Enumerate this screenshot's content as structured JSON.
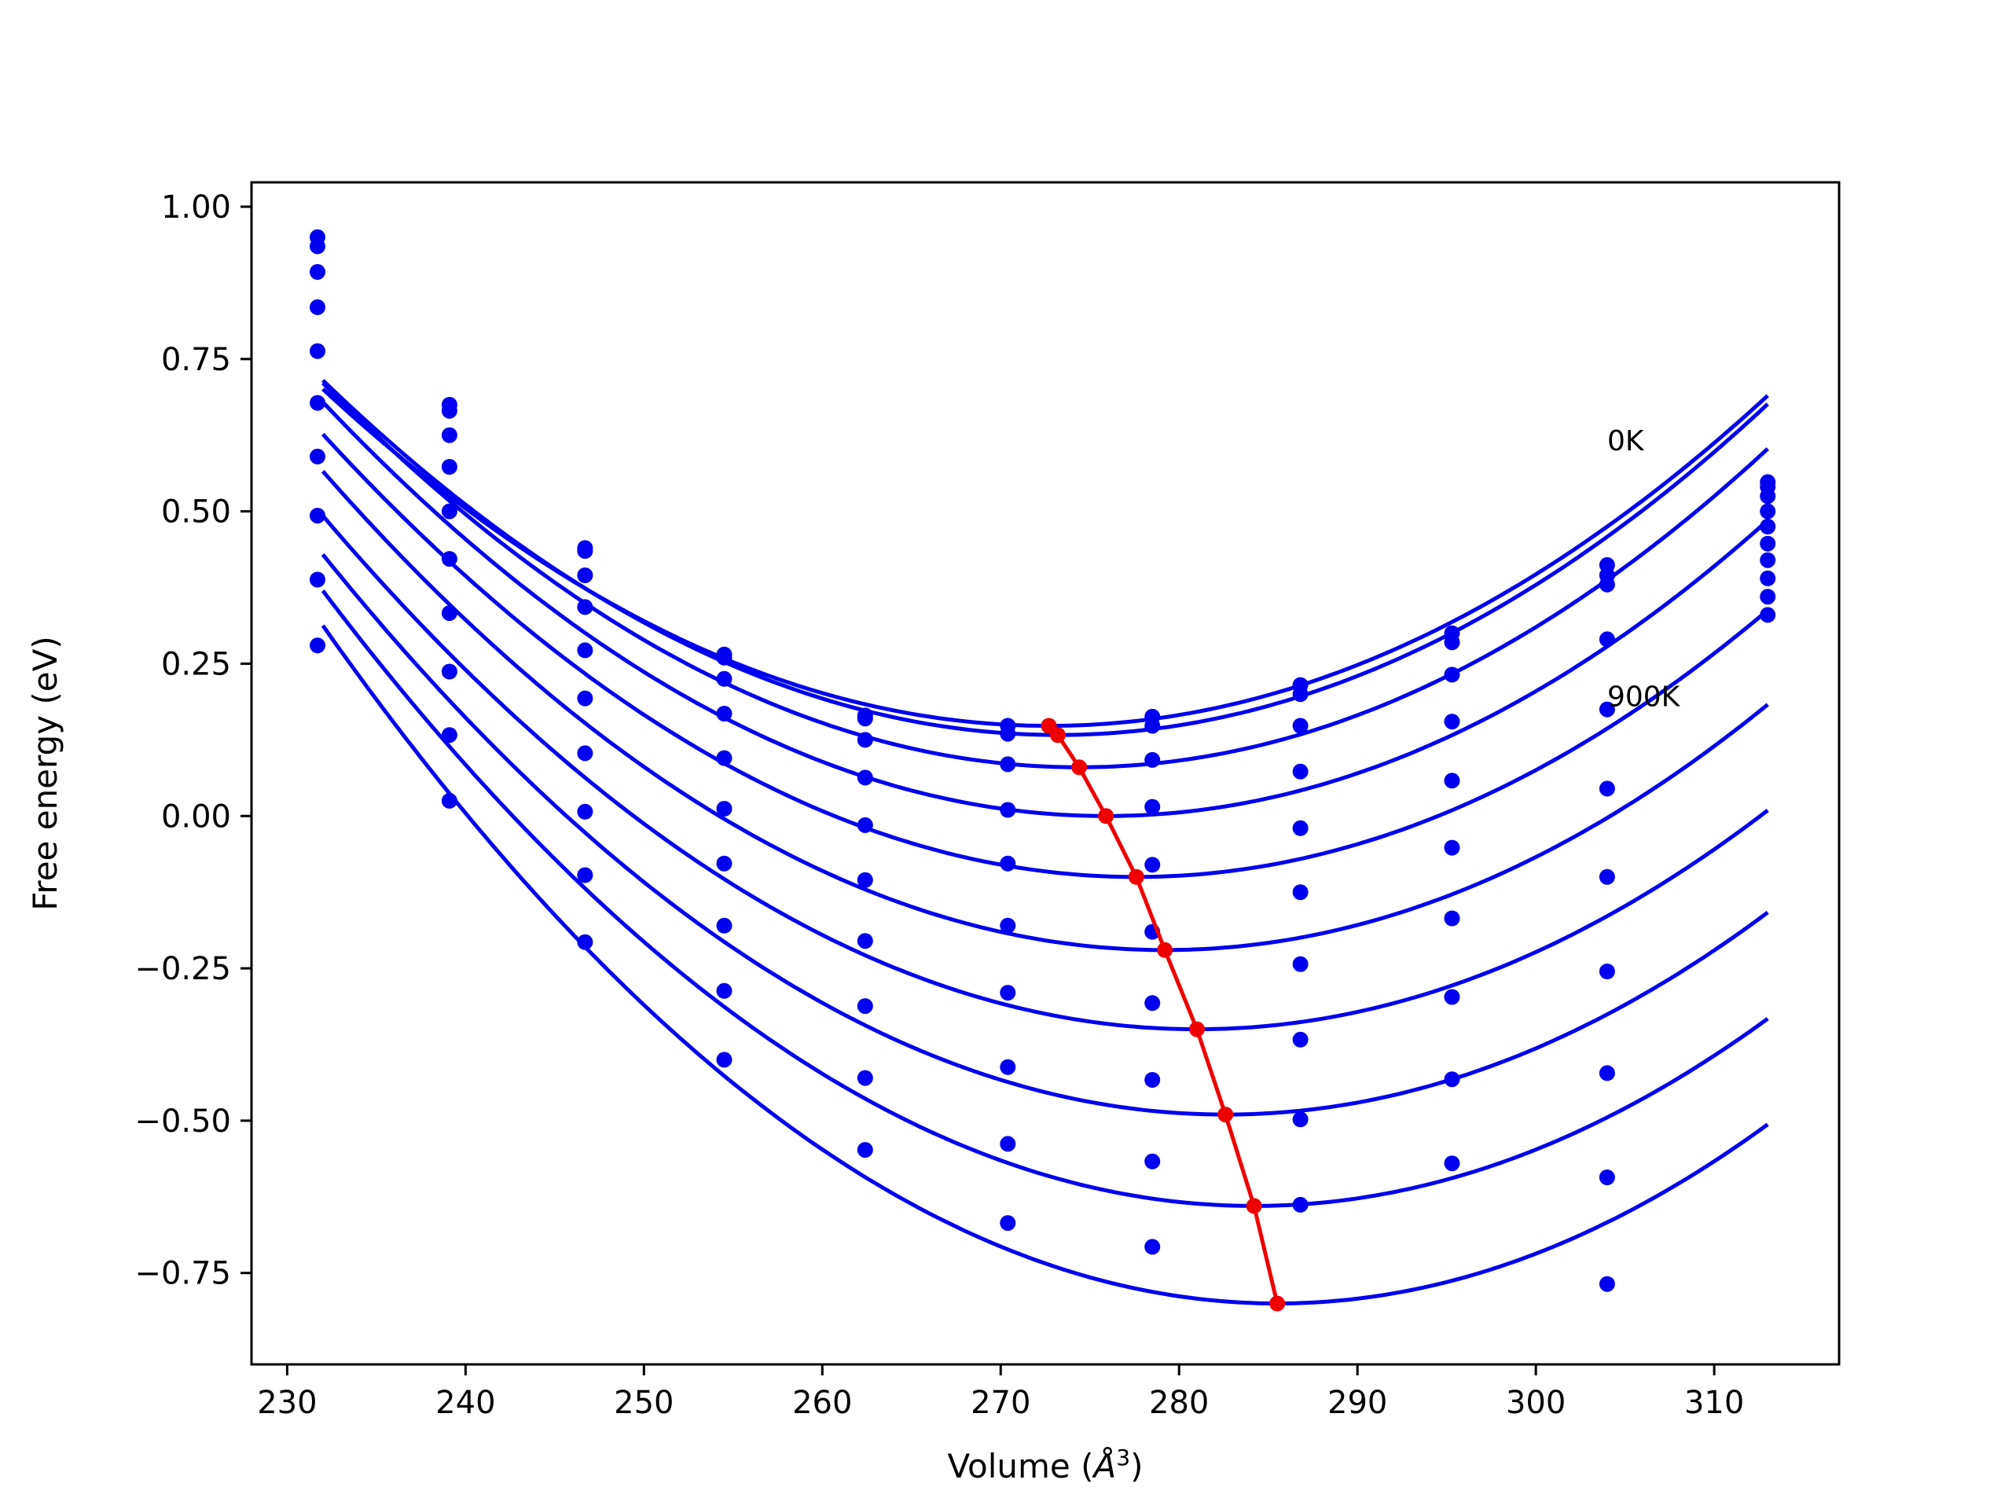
{
  "chart_data": {
    "type": "line",
    "title": "",
    "xlabel": "Volume (Å³)",
    "xlabel_main": "Volume (",
    "xlabel_unit": "Å",
    "xlabel_sup": "3",
    "xlabel_end": ")",
    "ylabel": "Free energy (eV)",
    "xlim": [
      228,
      317
    ],
    "ylim": [
      -0.9,
      1.04
    ],
    "xticks": [
      230,
      240,
      250,
      260,
      270,
      280,
      290,
      300,
      310
    ],
    "xtick_labels": [
      "230",
      "240",
      "250",
      "260",
      "270",
      "280",
      "290",
      "300",
      "310"
    ],
    "yticks": [
      1.0,
      0.75,
      0.5,
      0.25,
      0.0,
      -0.25,
      -0.5,
      -0.75
    ],
    "ytick_labels": [
      "1.00",
      "0.75",
      "0.50",
      "0.25",
      "0.00",
      "−0.25",
      "−0.50",
      "−0.75"
    ],
    "grid": false,
    "annotations": [
      {
        "text": "0K",
        "x": 304,
        "y": 0.6
      },
      {
        "text": "900K",
        "x": 304,
        "y": 0.18
      }
    ],
    "colors": {
      "fit": "#0000ee",
      "points": "#0000ee",
      "minimum_path": "#ee0000",
      "frame": "#000000"
    },
    "volumes": [
      231.7,
      239.1,
      246.7,
      254.5,
      262.4,
      270.4,
      278.5,
      286.8,
      295.3,
      304.0,
      313.0
    ],
    "data_points": [
      [
        0.95,
        0.675,
        0.44,
        0.265,
        0.165,
        0.148,
        0.163,
        0.215,
        0.3,
        0.412,
        0.548
      ],
      [
        0.935,
        0.665,
        0.435,
        0.26,
        0.16,
        0.135,
        0.148,
        0.2,
        0.285,
        0.395,
        0.54
      ],
      [
        0.893,
        0.625,
        0.395,
        0.225,
        0.125,
        0.085,
        0.092,
        0.148,
        0.232,
        0.38,
        0.525
      ],
      [
        0.835,
        0.573,
        0.343,
        0.168,
        0.063,
        0.01,
        0.015,
        0.073,
        0.155,
        0.29,
        0.5
      ],
      [
        0.763,
        0.5,
        0.272,
        0.095,
        -0.015,
        -0.078,
        -0.08,
        -0.02,
        0.058,
        0.175,
        0.475
      ],
      [
        0.678,
        0.422,
        0.193,
        0.012,
        -0.105,
        -0.18,
        -0.19,
        -0.125,
        -0.052,
        0.045,
        0.447
      ],
      [
        0.59,
        0.333,
        0.103,
        -0.078,
        -0.205,
        -0.29,
        -0.307,
        -0.243,
        -0.168,
        -0.1,
        0.42
      ],
      [
        0.493,
        0.237,
        0.007,
        -0.18,
        -0.312,
        -0.412,
        -0.433,
        -0.367,
        -0.297,
        -0.255,
        0.39
      ],
      [
        0.388,
        0.133,
        -0.097,
        -0.287,
        -0.43,
        -0.538,
        -0.567,
        -0.498,
        -0.432,
        -0.422,
        0.36
      ],
      [
        0.28,
        0.025,
        -0.207,
        -0.4,
        -0.548,
        -0.668,
        -0.707,
        -0.638,
        -0.57,
        -0.593,
        0.33
      ],
      [
        null,
        null,
        null,
        null,
        null,
        null,
        null,
        null,
        null,
        -0.768,
        null
      ]
    ],
    "series": [
      {
        "V0": 272.7,
        "E0": 0.148,
        "B": 0.0003337,
        "x_range": [
          232,
          313
        ]
      },
      {
        "V0": 273.2,
        "E0": 0.133,
        "B": 0.0003429,
        "x_range": [
          232,
          313
        ]
      },
      {
        "V0": 274.4,
        "E0": 0.08,
        "B": 0.0003509,
        "x_range": [
          232,
          313
        ]
      },
      {
        "V0": 275.9,
        "E0": 0.0,
        "B": 0.0003525,
        "x_range": [
          232,
          313
        ]
      },
      {
        "V0": 277.6,
        "E0": -0.1,
        "B": 0.0003494,
        "x_range": [
          232,
          313
        ]
      },
      {
        "V0": 279.2,
        "E0": -0.22,
        "B": 0.0003527,
        "x_range": [
          232,
          313
        ]
      },
      {
        "V0": 281.0,
        "E0": -0.35,
        "B": 0.000351,
        "x_range": [
          232,
          313
        ]
      },
      {
        "V0": 282.6,
        "E0": -0.49,
        "B": 0.000359,
        "x_range": [
          232,
          313
        ]
      },
      {
        "V0": 284.2,
        "E0": -0.64,
        "B": 0.0003706,
        "x_range": [
          232,
          313
        ]
      },
      {
        "V0": 285.5,
        "E0": -0.8,
        "B": 0.0003887,
        "x_range": [
          232,
          313
        ]
      }
    ],
    "minimum_path": {
      "x": [
        272.7,
        273.2,
        274.4,
        275.9,
        277.6,
        279.2,
        281.0,
        282.6,
        284.2,
        285.5
      ],
      "y": [
        0.148,
        0.133,
        0.08,
        0.0,
        -0.1,
        -0.22,
        -0.35,
        -0.49,
        -0.64,
        -0.8
      ]
    }
  }
}
